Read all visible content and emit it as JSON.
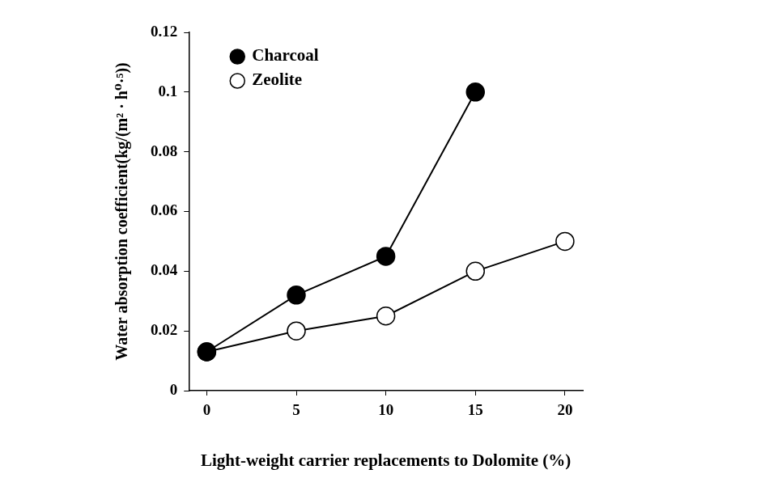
{
  "chart_data": {
    "type": "line",
    "x_label": "Light-weight carrier replacements to Dolomite (%)",
    "y_label": "Water absorption coefficient(kg/(m² · h⁰·⁵))",
    "series": [
      {
        "name": "Charcoal",
        "color": "#000000",
        "marker": "circle",
        "x": [
          0,
          5,
          10,
          15
        ],
        "values": [
          0.013,
          0.032,
          0.045,
          0.1
        ]
      },
      {
        "name": "Zeolite",
        "color": "#000000",
        "marker": "open-circle",
        "x": [
          0,
          5,
          10,
          15,
          20
        ],
        "values": [
          0.013,
          0.02,
          0.025,
          0.04,
          0.05
        ]
      }
    ],
    "xlim": [
      -1,
      21
    ],
    "xticks": [
      0,
      5,
      10,
      15,
      20
    ],
    "ylim": [
      0,
      0.12
    ],
    "yticks": [
      0,
      0.02,
      0.04,
      0.06,
      0.08,
      0.1,
      0.12
    ],
    "grid": false,
    "legend": "upper left"
  }
}
